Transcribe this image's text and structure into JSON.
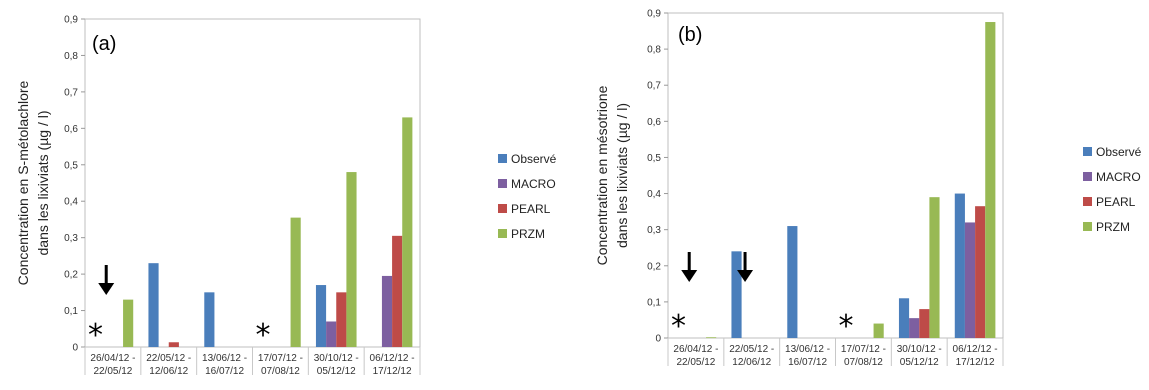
{
  "chart_data": [
    {
      "type": "bar",
      "panel_label": "(a)",
      "ylabel_line1": "Concentration en S-métolachlore",
      "ylabel_line2": "dans les lixiviats (µg / l)",
      "ylim": [
        0,
        0.9
      ],
      "yticks": [
        "0",
        "0,1",
        "0,2",
        "0,3",
        "0,4",
        "0,5",
        "0,6",
        "0,7",
        "0,8",
        "0,9"
      ],
      "categories": [
        [
          "26/04/12 -",
          "22/05/12"
        ],
        [
          "22/05/12 -",
          "12/06/12"
        ],
        [
          "13/06/12 -",
          "16/07/12"
        ],
        [
          "17/07/12 -",
          "07/08/12"
        ],
        [
          "30/10/12 -",
          "05/12/12"
        ],
        [
          "06/12/12 -",
          "17/12/12"
        ]
      ],
      "series": [
        {
          "name": "Observé",
          "color": "#4a7ebb",
          "values": [
            null,
            0.23,
            0.15,
            null,
            0.17,
            null
          ]
        },
        {
          "name": "MACRO",
          "color": "#7d5fa0",
          "values": [
            null,
            null,
            null,
            null,
            0.07,
            0.195
          ]
        },
        {
          "name": "PEARL",
          "color": "#be4b48",
          "values": [
            null,
            0.013,
            null,
            null,
            0.15,
            0.305
          ]
        },
        {
          "name": "PRZM",
          "color": "#98b954",
          "values": [
            0.13,
            null,
            null,
            0.355,
            0.48,
            0.63
          ]
        }
      ],
      "stars": [
        0,
        3
      ],
      "arrows": [
        0
      ],
      "grid": false,
      "legend": "right"
    },
    {
      "type": "bar",
      "panel_label": "(b)",
      "ylabel_line1": "Concentration en mésotrione",
      "ylabel_line2": "dans les lixiviats (µg / l)",
      "ylim": [
        0,
        0.9
      ],
      "yticks": [
        "0",
        "0,1",
        "0,2",
        "0,3",
        "0,4",
        "0,5",
        "0,6",
        "0,7",
        "0,8",
        "0,9"
      ],
      "categories": [
        [
          "26/04/12 -",
          "22/05/12"
        ],
        [
          "22/05/12 -",
          "12/06/12"
        ],
        [
          "13/06/12 -",
          "16/07/12"
        ],
        [
          "17/07/12 -",
          "07/08/12"
        ],
        [
          "30/10/12 -",
          "05/12/12"
        ],
        [
          "06/12/12 -",
          "17/12/12"
        ]
      ],
      "series": [
        {
          "name": "Observé",
          "color": "#4a7ebb",
          "values": [
            null,
            0.24,
            0.31,
            null,
            0.11,
            0.4
          ]
        },
        {
          "name": "MACRO",
          "color": "#7d5fa0",
          "values": [
            null,
            null,
            null,
            null,
            0.055,
            0.32
          ]
        },
        {
          "name": "PEARL",
          "color": "#be4b48",
          "values": [
            null,
            null,
            null,
            null,
            0.08,
            0.365
          ]
        },
        {
          "name": "PRZM",
          "color": "#98b954",
          "values": [
            0.002,
            null,
            null,
            0.04,
            0.39,
            0.875
          ]
        }
      ],
      "stars": [
        0,
        3
      ],
      "arrows": [
        0,
        1
      ],
      "grid": false,
      "legend": "right"
    }
  ]
}
